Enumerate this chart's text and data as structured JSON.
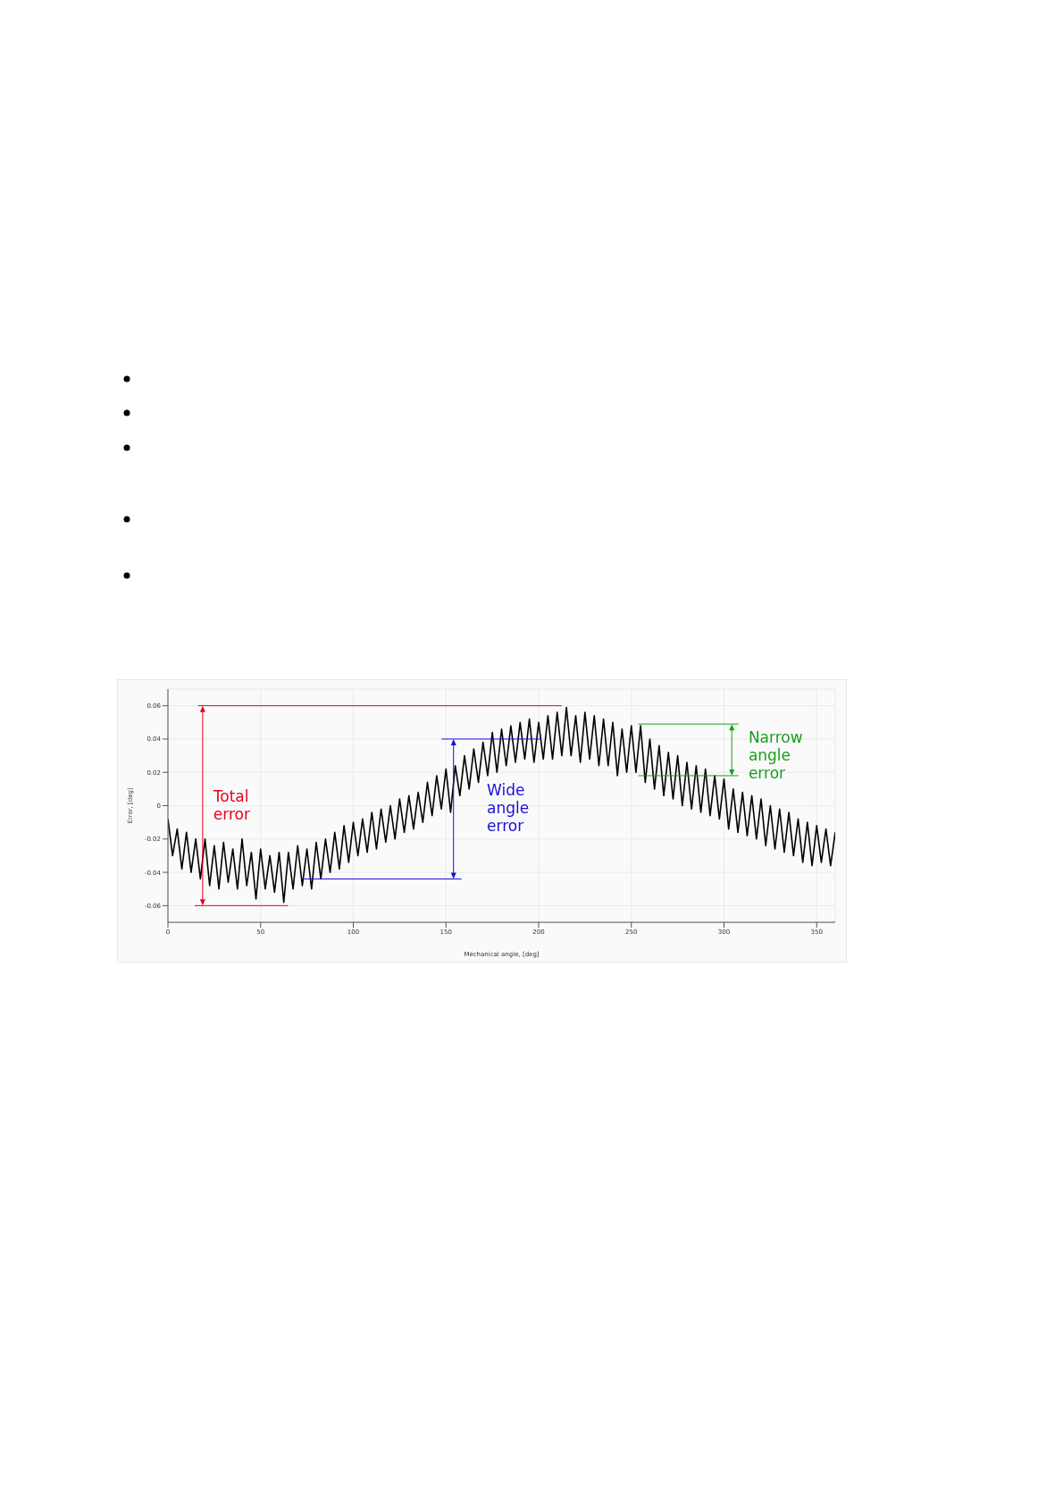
{
  "chart_data": {
    "type": "line",
    "xlabel": "Mechanical angle, [deg]",
    "ylabel": "Error, [deg]",
    "xlim": [
      0,
      360
    ],
    "xticks": [
      0,
      50,
      100,
      150,
      200,
      250,
      300,
      350
    ],
    "ylim": [
      -0.07,
      0.07
    ],
    "yticks": [
      -0.06,
      -0.04,
      -0.02,
      0,
      0.02,
      0.04,
      0.06
    ],
    "grid": true,
    "ref_lines": [
      {
        "axis": "y",
        "value": 0.06,
        "label": "Total error",
        "color": "#e8001c"
      },
      {
        "axis": "y",
        "value": -0.06,
        "color": "#e8001c"
      },
      {
        "axis": "y",
        "value": 0.04,
        "label": "Wide angle error",
        "color": "#1a10d8"
      },
      {
        "axis": "y",
        "value": -0.044,
        "color": "#1a10d8"
      },
      {
        "axis": "y",
        "value": 0.049,
        "label": "Narrow angle error",
        "color": "#16a01a"
      },
      {
        "axis": "y",
        "value": 0.018,
        "color": "#16a01a"
      }
    ],
    "series": [
      {
        "color": "#000000",
        "x": [
          0,
          2.5,
          5,
          7.5,
          10,
          12.5,
          15,
          17.5,
          20,
          22.5,
          25,
          27.5,
          30,
          32.5,
          35,
          37.5,
          40,
          42.5,
          45,
          47.5,
          50,
          52.5,
          55,
          57.5,
          60,
          62.5,
          65,
          67.5,
          70,
          72.5,
          75,
          77.5,
          80,
          82.5,
          85,
          87.5,
          90,
          92.5,
          95,
          97.5,
          100,
          102.5,
          105,
          107.5,
          110,
          112.5,
          115,
          117.5,
          120,
          122.5,
          125,
          127.5,
          130,
          132.5,
          135,
          137.5,
          140,
          142.5,
          145,
          147.5,
          150,
          152.5,
          155,
          157.5,
          160,
          162.5,
          165,
          167.5,
          170,
          172.5,
          175,
          177.5,
          180,
          182.5,
          185,
          187.5,
          190,
          192.5,
          195,
          197.5,
          200,
          202.5,
          205,
          207.5,
          210,
          212.5,
          215,
          217.5,
          220,
          222.5,
          225,
          227.5,
          230,
          232.5,
          235,
          237.5,
          240,
          242.5,
          245,
          247.5,
          250,
          252.5,
          255,
          257.5,
          260,
          262.5,
          265,
          267.5,
          270,
          272.5,
          275,
          277.5,
          280,
          282.5,
          285,
          287.5,
          290,
          292.5,
          295,
          297.5,
          300,
          302.5,
          305,
          307.5,
          310,
          312.5,
          315,
          317.5,
          320,
          322.5,
          325,
          327.5,
          330,
          332.5,
          335,
          337.5,
          340,
          342.5,
          345,
          347.5,
          350,
          352.5,
          355,
          357.5,
          360
        ],
        "values": [
          -0.008,
          -0.03,
          -0.014,
          -0.038,
          -0.016,
          -0.04,
          -0.02,
          -0.044,
          -0.02,
          -0.048,
          -0.024,
          -0.05,
          -0.022,
          -0.046,
          -0.026,
          -0.05,
          -0.02,
          -0.048,
          -0.028,
          -0.056,
          -0.026,
          -0.05,
          -0.03,
          -0.052,
          -0.028,
          -0.058,
          -0.028,
          -0.05,
          -0.024,
          -0.048,
          -0.026,
          -0.05,
          -0.022,
          -0.044,
          -0.02,
          -0.04,
          -0.016,
          -0.038,
          -0.012,
          -0.034,
          -0.01,
          -0.03,
          -0.008,
          -0.028,
          -0.004,
          -0.026,
          -0.002,
          -0.022,
          0,
          -0.02,
          0.004,
          -0.016,
          0.006,
          -0.014,
          0.008,
          -0.01,
          0.014,
          -0.006,
          0.018,
          -0.002,
          0.022,
          -0.004,
          0.024,
          0.006,
          0.03,
          0.01,
          0.034,
          0.014,
          0.038,
          0.018,
          0.044,
          0.02,
          0.046,
          0.024,
          0.048,
          0.026,
          0.05,
          0.028,
          0.052,
          0.026,
          0.05,
          0.028,
          0.054,
          0.028,
          0.056,
          0.03,
          0.059,
          0.03,
          0.054,
          0.026,
          0.056,
          0.028,
          0.054,
          0.024,
          0.052,
          0.024,
          0.05,
          0.018,
          0.046,
          0.02,
          0.048,
          0.02,
          0.048,
          0.014,
          0.04,
          0.01,
          0.036,
          0.006,
          0.032,
          0.004,
          0.03,
          0,
          0.026,
          -0.002,
          0.024,
          -0.004,
          0.022,
          -0.006,
          0.018,
          -0.008,
          0.016,
          -0.014,
          0.01,
          -0.016,
          0.008,
          -0.018,
          0.006,
          -0.02,
          0.004,
          -0.024,
          0,
          -0.026,
          -0.002,
          -0.028,
          -0.004,
          -0.03,
          -0.008,
          -0.034,
          -0.01,
          -0.036,
          -0.012,
          -0.034,
          -0.014,
          -0.036,
          -0.016
        ]
      }
    ]
  }
}
